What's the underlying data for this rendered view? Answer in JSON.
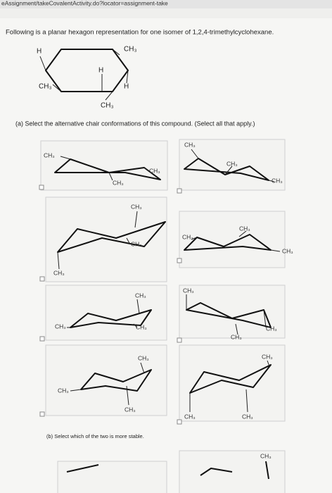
{
  "browser": {
    "url": "eAssignment/takeCovalentActivity.do?locator=assignment-take"
  },
  "question": {
    "text": "Following is a planar hexagon representation for one isomer of 1,2,4-trimethylcyclohexane.",
    "hexagon_labels": [
      "H",
      "CH₃",
      "H",
      "H",
      "CH₃",
      "CH₃"
    ]
  },
  "part_a": {
    "text": "(a) Select the alternative chair conformations of this compound. (Select all that apply.)",
    "options": [
      {
        "labels": [
          "CH₃",
          "CH₃",
          "CH₃"
        ]
      },
      {
        "labels": [
          "CH₃",
          "CH₃",
          "CH₃"
        ]
      },
      {
        "labels": [
          "CH₃",
          "CH₃",
          "CH₃"
        ]
      },
      {
        "labels": [
          "CH₃",
          "CH₃",
          "CH₃"
        ]
      },
      {
        "labels": [
          "CH₃",
          "CH₃",
          "CH₃"
        ]
      },
      {
        "labels": [
          "CH₃",
          "CH₃",
          "CH₃"
        ]
      },
      {
        "labels": [
          "CH₃",
          "CH₃",
          "CH₃"
        ]
      },
      {
        "labels": [
          "CH₃",
          "CH₃",
          "CH₃"
        ]
      }
    ]
  },
  "part_b": {
    "text": "(b) Select which of the two is more stable.",
    "labels": [
      "CH₃"
    ]
  }
}
